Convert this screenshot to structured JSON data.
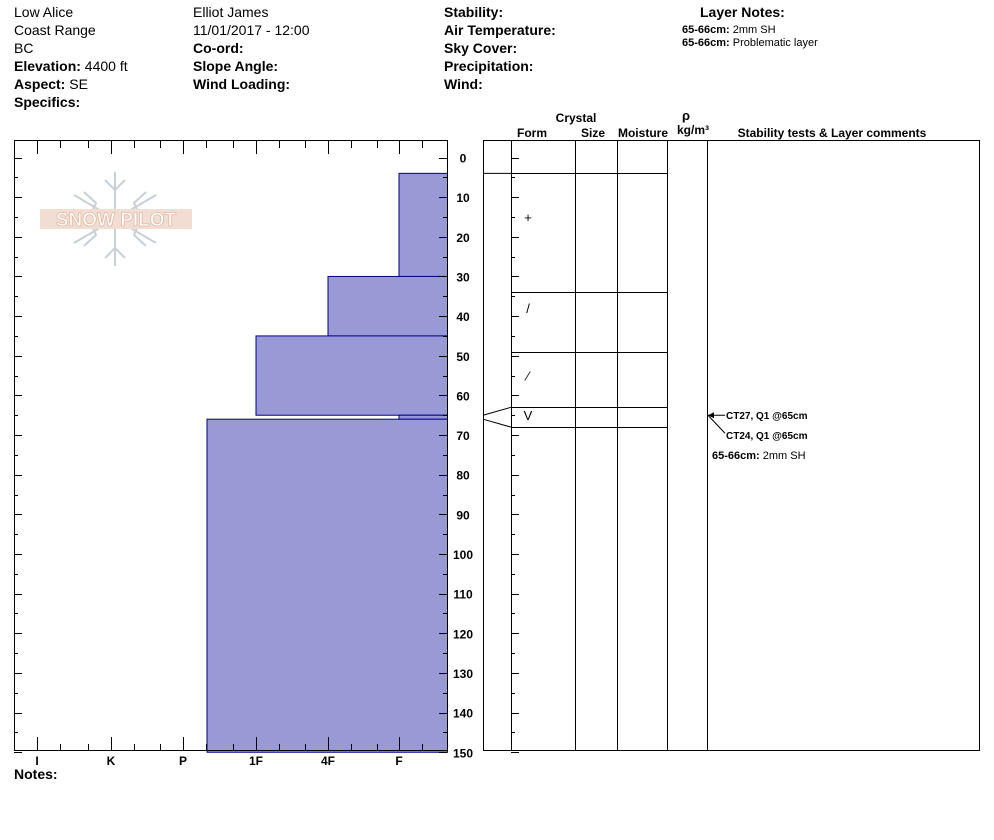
{
  "header": {
    "location": "Low Alice",
    "range": "Coast Range",
    "state": "BC",
    "elevation_label": "Elevation:",
    "elevation": "4400 ft",
    "aspect_label": "Aspect:",
    "aspect": "SE",
    "specifics_label": "Specifics:",
    "observer": "Elliot James",
    "datetime": "11/01/2017 - 12:00",
    "coord_label": "Co-ord:",
    "slope_label": "Slope Angle:",
    "wind_loading_label": "Wind Loading:",
    "stability_label": "Stability:",
    "air_temp_label": "Air Temperature:",
    "sky_label": "Sky Cover:",
    "precip_label": "Precipitation:",
    "wind_label": "Wind:",
    "layer_notes_title": "Layer Notes:",
    "layer_notes": [
      {
        "range": "65-66cm:",
        "text": "2mm SH"
      },
      {
        "range": "65-66cm:",
        "text": "Problematic layer"
      }
    ]
  },
  "logo_text": "SNOW PILOT",
  "notes_label": "Notes:",
  "columns": {
    "crystal": "Crystal",
    "form": "Form",
    "size": "Size",
    "moisture": "Moisture",
    "rho": "ρ",
    "density_unit": "kg/m³",
    "comments": "Stability tests & Layer comments"
  },
  "colors": {
    "hardness_fill": "#9999d6",
    "hardness_stroke": "#00008b"
  },
  "chart_data": {
    "type": "bar",
    "subtype": "snow-profile-hardness",
    "depth_unit": "cm",
    "ylim": [
      0,
      150
    ],
    "y_ticks": [
      0,
      10,
      20,
      30,
      40,
      50,
      60,
      70,
      80,
      90,
      100,
      110,
      120,
      130,
      140,
      150
    ],
    "hardness_scale": [
      "I",
      "K",
      "P",
      "1F",
      "4F",
      "F"
    ],
    "layers": [
      {
        "top": 4,
        "bottom": 30,
        "hardness": "F"
      },
      {
        "top": 30,
        "bottom": 45,
        "hardness": "4F"
      },
      {
        "top": 45,
        "bottom": 65,
        "hardness": "1F"
      },
      {
        "top": 65,
        "bottom": 66,
        "hardness": "F"
      },
      {
        "top": 66,
        "bottom": 150,
        "hardness": "P+"
      }
    ],
    "layer_boundaries": [
      4,
      34,
      49,
      63,
      68
    ],
    "grain_forms": [
      {
        "depth": 15,
        "symbol": "+"
      },
      {
        "depth": 38,
        "symbol": "/"
      },
      {
        "depth": 55,
        "symbol": "⁄"
      },
      {
        "depth": 65,
        "symbol": "V"
      }
    ],
    "stability_tests": [
      {
        "depth": 65,
        "label": "CT27, Q1 @65cm"
      },
      {
        "depth": 65,
        "label": "CT24, Q1 @65cm"
      }
    ],
    "layer_comments": [
      {
        "range": "65-66cm:",
        "text": "2mm SH"
      }
    ]
  }
}
